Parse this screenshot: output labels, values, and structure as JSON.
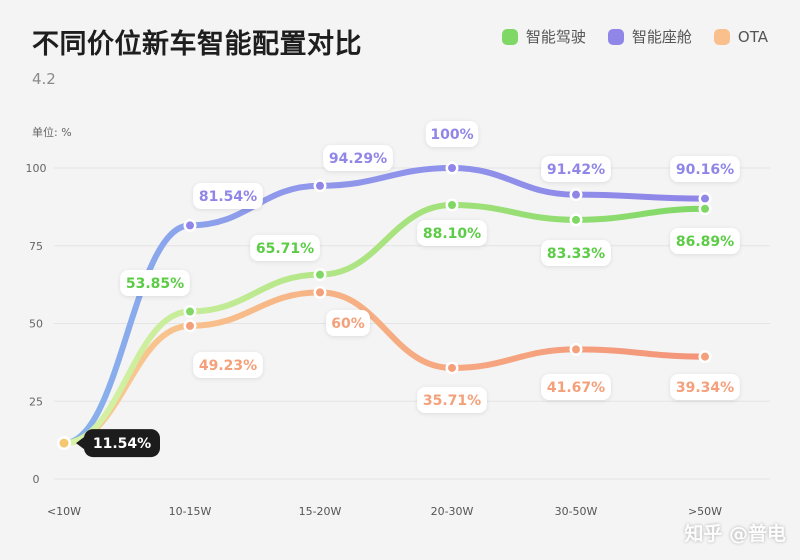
{
  "title": "不同价位新车智能配置对比",
  "subtitle": "4.2",
  "unit_label": "单位: %",
  "watermark": "知乎 @普电",
  "colors": {
    "driving": "#7fd866",
    "driving_light": "#d9f2a8",
    "cabin": "#8f86e8",
    "cabin_light": "#86b3ec",
    "ota": "#f4a07a",
    "ota_light": "#f9cd93",
    "origin_badge": "#1c1c1c"
  },
  "chart_data": {
    "type": "line",
    "title": "不同价位新车智能配置对比",
    "subtitle": "4.2",
    "ylabel": "单位: %",
    "xlabel": "",
    "ylim": [
      0,
      100
    ],
    "yticks": [
      0,
      25,
      50,
      75,
      100
    ],
    "categories": [
      "<10W",
      "10-15W",
      "15-20W",
      "20-30W",
      "30-50W",
      ">50W"
    ],
    "legend_position": "top-right",
    "series": [
      {
        "key": "driving",
        "name": "智能驾驶",
        "values": [
          11.54,
          53.85,
          65.71,
          88.1,
          83.33,
          86.89
        ],
        "labels": [
          "",
          "53.85%",
          "65.71%",
          "88.10%",
          "83.33%",
          "86.89%"
        ]
      },
      {
        "key": "cabin",
        "name": "智能座舱",
        "values": [
          11.54,
          81.54,
          94.29,
          100,
          91.42,
          90.16
        ],
        "labels": [
          "",
          "81.54%",
          "94.29%",
          "100%",
          "91.42%",
          "90.16%"
        ]
      },
      {
        "key": "ota",
        "name": "OTA",
        "values": [
          11.54,
          49.23,
          60,
          35.71,
          41.67,
          39.34
        ],
        "labels": [
          "",
          "49.23%",
          "60%",
          "35.71%",
          "41.67%",
          "39.34%"
        ]
      }
    ],
    "origin_label": "11.54%"
  }
}
